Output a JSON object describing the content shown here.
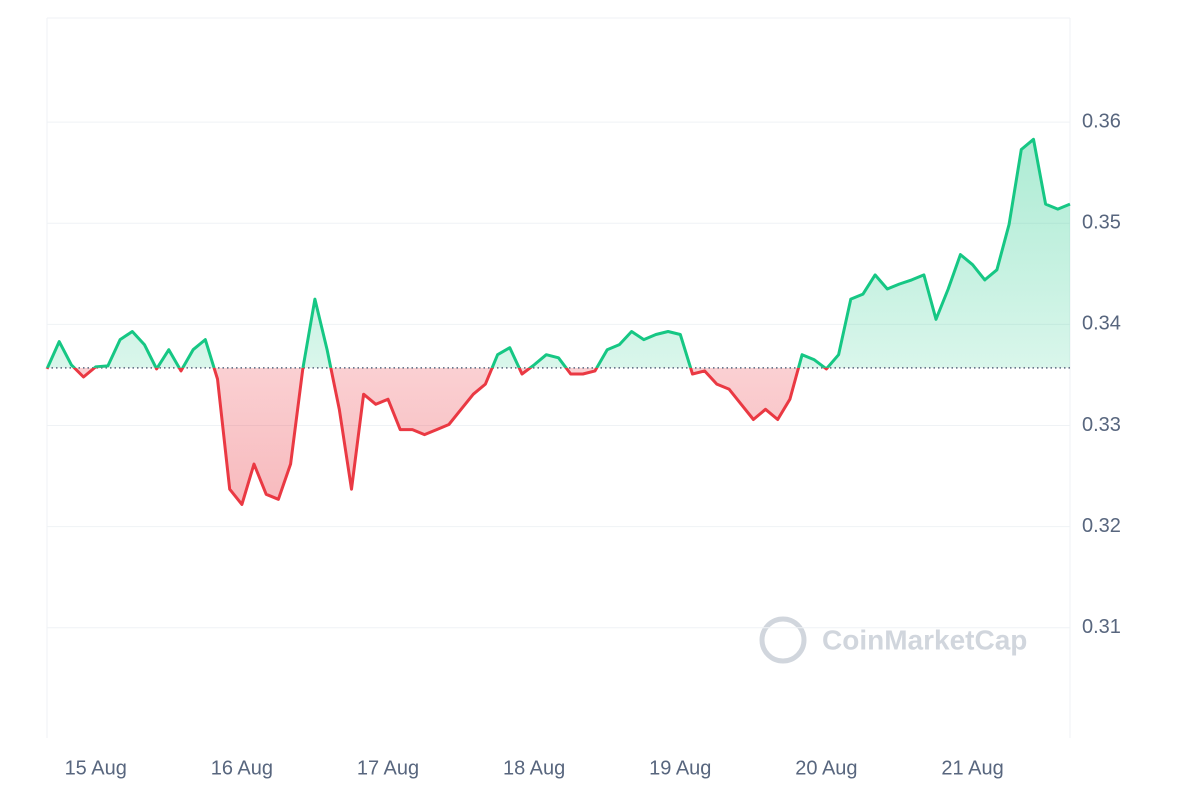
{
  "chart_data": {
    "type": "baseline-line",
    "categories": [
      null,
      null,
      null,
      null,
      "15 Aug",
      null,
      null,
      null,
      null,
      null,
      null,
      null,
      null,
      null,
      null,
      null,
      "16 Aug",
      null,
      null,
      null,
      null,
      null,
      null,
      null,
      null,
      null,
      null,
      null,
      "17 Aug",
      null,
      null,
      null,
      null,
      null,
      null,
      null,
      null,
      null,
      null,
      null,
      "18 Aug",
      null,
      null,
      null,
      null,
      null,
      null,
      null,
      null,
      null,
      null,
      null,
      "19 Aug",
      null,
      null,
      null,
      null,
      null,
      null,
      null,
      null,
      null,
      null,
      null,
      "20 Aug",
      null,
      null,
      null,
      null,
      null,
      null,
      null,
      null,
      null,
      null,
      null,
      "21 Aug",
      null,
      null,
      null,
      null,
      null,
      null,
      null,
      null
    ],
    "values": [
      0.3356,
      0.3383,
      0.336,
      0.3348,
      0.3358,
      0.3359,
      0.3385,
      0.3393,
      0.338,
      0.3356,
      0.3375,
      0.3354,
      0.3375,
      0.3385,
      0.3346,
      0.3237,
      0.3222,
      0.3262,
      0.3232,
      0.3227,
      0.3262,
      0.3356,
      0.3425,
      0.3375,
      0.3316,
      0.3237,
      0.3331,
      0.3321,
      0.3326,
      0.3296,
      0.3296,
      0.3291,
      0.3296,
      0.3301,
      0.3316,
      0.3331,
      0.3341,
      0.337,
      0.3377,
      0.3351,
      0.336,
      0.337,
      0.3367,
      0.3351,
      0.3351,
      0.3354,
      0.3375,
      0.338,
      0.3393,
      0.3385,
      0.339,
      0.3393,
      0.339,
      0.3351,
      0.3354,
      0.3341,
      0.3336,
      0.3321,
      0.3306,
      0.3316,
      0.3306,
      0.3326,
      0.337,
      0.3365,
      0.3356,
      0.337,
      0.3425,
      0.343,
      0.3449,
      0.3435,
      0.344,
      0.3444,
      0.3449,
      0.3405,
      0.3435,
      0.3469,
      0.3459,
      0.3444,
      0.3454,
      0.3499,
      0.3573,
      0.3583,
      0.3519,
      0.3514,
      0.3519
    ],
    "baseline": 0.3357,
    "up_color": "#16c784",
    "down_color": "#ea3943",
    "ylim": [
      0.2991,
      0.3703
    ],
    "yticks": [
      0.31,
      0.32,
      0.33,
      0.34,
      0.35,
      0.36
    ],
    "grid": true,
    "watermark": "CoinMarketCap"
  }
}
